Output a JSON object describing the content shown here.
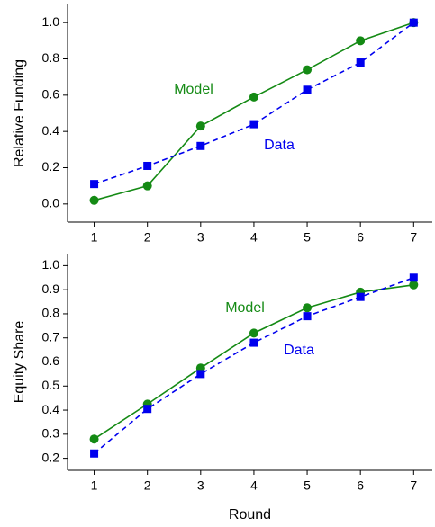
{
  "chart_data": [
    {
      "type": "line",
      "ylabel": "Relative Funding",
      "x": [
        1,
        2,
        3,
        4,
        5,
        6,
        7
      ],
      "xlim": [
        0.5,
        7.35
      ],
      "xticks": [
        1,
        2,
        3,
        4,
        5,
        6,
        7
      ],
      "ylim": [
        -0.1,
        1.1
      ],
      "yticks": [
        {
          "value": 0,
          "label": "0.0"
        },
        0.2,
        0.4,
        0.6,
        0.8,
        {
          "value": 1,
          "label": "1.0"
        }
      ],
      "series": [
        {
          "name": "Model",
          "color": "#148a14",
          "marker": "circle",
          "dashed": false,
          "values": [
            0.02,
            0.1,
            0.43,
            0.59,
            0.74,
            0.9,
            1.0
          ]
        },
        {
          "name": "Data",
          "color": "#0000ee",
          "marker": "square",
          "dashed": true,
          "values": [
            0.11,
            0.21,
            0.32,
            0.44,
            0.63,
            0.78,
            1.0
          ]
        }
      ]
    },
    {
      "type": "line",
      "ylabel": "Equity Share",
      "xlabel": "Round",
      "x": [
        1,
        2,
        3,
        4,
        5,
        6,
        7
      ],
      "xlim": [
        0.5,
        7.35
      ],
      "xticks": [
        1,
        2,
        3,
        4,
        5,
        6,
        7
      ],
      "ylim": [
        0.15,
        1.05
      ],
      "yticks": [
        0.2,
        0.3,
        0.4,
        0.5,
        0.6,
        0.7,
        0.8,
        0.9,
        {
          "value": 1,
          "label": "1.0"
        }
      ],
      "series": [
        {
          "name": "Model",
          "color": "#148a14",
          "marker": "circle",
          "dashed": false,
          "values": [
            0.28,
            0.425,
            0.575,
            0.72,
            0.825,
            0.89,
            0.92
          ]
        },
        {
          "name": "Data",
          "color": "#0000ee",
          "marker": "square",
          "dashed": true,
          "values": [
            0.22,
            0.405,
            0.55,
            0.68,
            0.79,
            0.87,
            0.95
          ]
        }
      ]
    }
  ]
}
